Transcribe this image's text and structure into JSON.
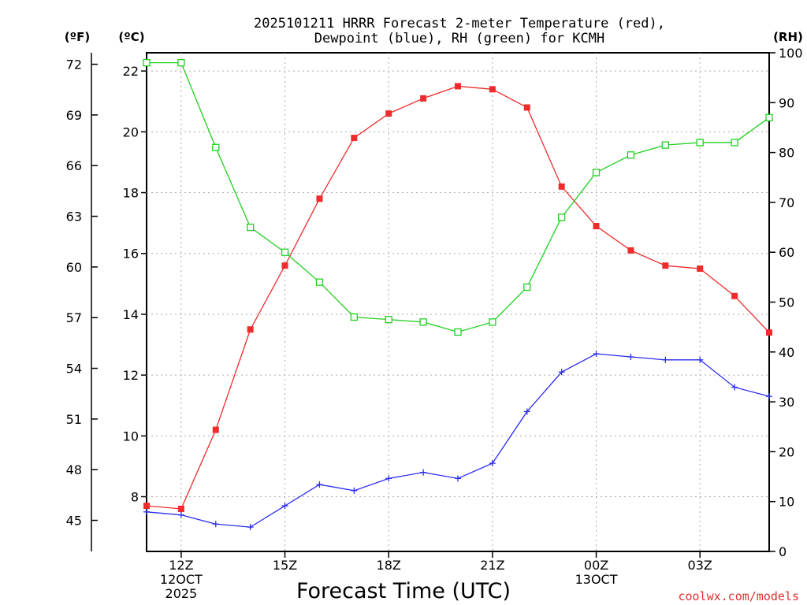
{
  "chart_data": {
    "type": "line",
    "title_line1": "2025101211 HRRR Forecast 2-meter Temperature (red),",
    "title_line2": "Dewpoint (blue), RH (green) for KCMH",
    "xlabel": "Forecast Time (UTC)",
    "watermark": "coolwx.com/models",
    "unit_f": "(ºF)",
    "unit_c": "(ºC)",
    "unit_rh": "(RH)",
    "x_hours": [
      11,
      12,
      13,
      14,
      15,
      16,
      17,
      18,
      19,
      20,
      21,
      22,
      23,
      24,
      25,
      26,
      27,
      28,
      29
    ],
    "xlim": [
      11,
      29
    ],
    "x_ticks": [
      {
        "hour": 12,
        "label": "12Z",
        "sub1": "12OCT",
        "sub2": "2025"
      },
      {
        "hour": 15,
        "label": "15Z",
        "sub1": "",
        "sub2": ""
      },
      {
        "hour": 18,
        "label": "18Z",
        "sub1": "",
        "sub2": ""
      },
      {
        "hour": 21,
        "label": "21Z",
        "sub1": "",
        "sub2": ""
      },
      {
        "hour": 24,
        "label": "00Z",
        "sub1": "13OCT",
        "sub2": ""
      },
      {
        "hour": 27,
        "label": "03Z",
        "sub1": "",
        "sub2": ""
      }
    ],
    "celsius_axis": {
      "ylim": [
        6.2,
        22.6
      ],
      "ticks": [
        8,
        10,
        12,
        14,
        16,
        18,
        20,
        22
      ]
    },
    "fahrenheit_axis": {
      "ticks": [
        45,
        48,
        51,
        54,
        57,
        60,
        63,
        66,
        69,
        72
      ]
    },
    "rh_axis": {
      "ylim": [
        0,
        100
      ],
      "ticks": [
        0,
        10,
        20,
        30,
        40,
        50,
        60,
        70,
        80,
        90,
        100
      ]
    },
    "series": [
      {
        "name": "Temperature",
        "unit": "C",
        "color": "#ee2c2c",
        "values": [
          7.7,
          7.6,
          10.2,
          13.5,
          15.6,
          17.8,
          19.8,
          20.6,
          21.1,
          21.5,
          21.4,
          20.8,
          18.2,
          16.9,
          16.1,
          15.6,
          15.5,
          14.6,
          13.4
        ]
      },
      {
        "name": "Dewpoint",
        "unit": "C",
        "color": "#2c2cee",
        "values": [
          7.5,
          7.4,
          7.1,
          7.0,
          7.7,
          8.4,
          8.2,
          8.6,
          8.8,
          8.6,
          9.1,
          10.8,
          12.1,
          12.7,
          12.6,
          12.5,
          12.5,
          11.6,
          11.3
        ]
      },
      {
        "name": "RH",
        "unit": "%",
        "color": "#20d020",
        "values": [
          98,
          98,
          81,
          65,
          60,
          54,
          47,
          46.5,
          46,
          44,
          46,
          53,
          67,
          76,
          79.5,
          81.5,
          82,
          82,
          87
        ]
      }
    ]
  }
}
